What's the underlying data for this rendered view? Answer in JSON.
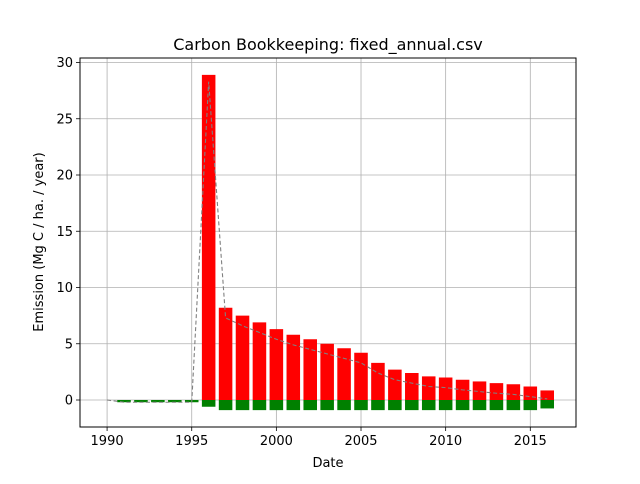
{
  "chart_data": {
    "type": "bar",
    "title": "Carbon Bookkeeping: fixed_annual.csv",
    "xlabel": "Date",
    "ylabel": "Emission (Mg C / ha. / year)",
    "xlim": [
      1988.4,
      2017.7
    ],
    "ylim": [
      -2.4,
      30.4
    ],
    "xticks": [
      1990,
      1995,
      2000,
      2005,
      2010,
      2015
    ],
    "yticks": [
      0,
      5,
      10,
      15,
      20,
      25,
      30
    ],
    "grid": true,
    "colors": {
      "positive": "#ff0000",
      "negative": "#008000",
      "net_line": "#808080"
    },
    "x": [
      1991,
      1992,
      1993,
      1994,
      1995,
      1996,
      1997,
      1998,
      1999,
      2000,
      2001,
      2002,
      2003,
      2004,
      2005,
      2006,
      2007,
      2008,
      2009,
      2010,
      2011,
      2012,
      2013,
      2014,
      2015,
      2016
    ],
    "series": [
      {
        "values": [
          0.0,
          0.0,
          0.0,
          0.0,
          0.0,
          28.9,
          8.2,
          7.5,
          6.9,
          6.3,
          5.8,
          5.4,
          5.0,
          4.6,
          4.2,
          3.3,
          2.7,
          2.4,
          2.1,
          2.0,
          1.8,
          1.65,
          1.5,
          1.4,
          1.2,
          0.85
        ]
      },
      {
        "values": [
          -0.2,
          -0.2,
          -0.2,
          -0.2,
          -0.2,
          -0.6,
          -0.9,
          -0.9,
          -0.9,
          -0.9,
          -0.9,
          -0.9,
          -0.9,
          -0.9,
          -0.9,
          -0.9,
          -0.9,
          -0.9,
          -0.9,
          -0.9,
          -0.9,
          -0.9,
          -0.9,
          -0.9,
          -0.9,
          -0.75
        ]
      },
      {
        "x": [
          1990,
          1991,
          1992,
          1993,
          1994,
          1995,
          1996,
          1997,
          1998,
          1999,
          2000,
          2001,
          2002,
          2003,
          2004,
          2005,
          2006,
          2007,
          2008,
          2009,
          2010,
          2011,
          2012,
          2013,
          2014,
          2015,
          2016
        ],
        "values": [
          0.0,
          -0.2,
          -0.2,
          -0.2,
          -0.2,
          -0.2,
          28.3,
          7.3,
          6.6,
          6.0,
          5.4,
          4.9,
          4.5,
          4.1,
          3.7,
          3.3,
          2.4,
          1.8,
          1.5,
          1.2,
          1.1,
          0.9,
          0.75,
          0.6,
          0.5,
          0.3,
          0.1
        ]
      }
    ]
  }
}
